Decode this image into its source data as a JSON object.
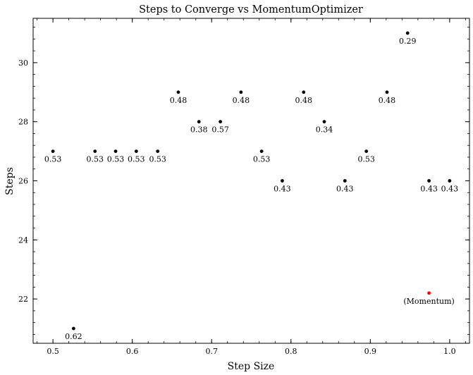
{
  "chart_data": {
    "type": "scatter",
    "title": "Steps to Converge vs MomentumOptimizer",
    "xlabel": "Step Size",
    "ylabel": "Steps",
    "xlim": [
      0.475,
      1.025
    ],
    "ylim": [
      20.5,
      31.5
    ],
    "grid": false,
    "x_ticks": [
      0.5,
      0.6,
      0.7,
      0.8,
      0.9,
      1.0
    ],
    "x_tick_labels": [
      "0.5",
      "0.6",
      "0.7",
      "0.8",
      "0.9",
      "1.0"
    ],
    "y_ticks": [
      22,
      24,
      26,
      28,
      30
    ],
    "y_tick_labels": [
      "22",
      "24",
      "26",
      "28",
      "30"
    ],
    "x_minor_step": 0.02,
    "y_minor_step": 0.4,
    "colors": {
      "points": "#000000",
      "highlight": "#ff0000"
    },
    "series": [
      {
        "points": [
          {
            "x": 0.5,
            "y": 27,
            "label": "0.53"
          },
          {
            "x": 0.526,
            "y": 21,
            "label": "0.62"
          },
          {
            "x": 0.553,
            "y": 27,
            "label": "0.53"
          },
          {
            "x": 0.579,
            "y": 27,
            "label": "0.53"
          },
          {
            "x": 0.605,
            "y": 27,
            "label": "0.53"
          },
          {
            "x": 0.632,
            "y": 27,
            "label": "0.53"
          },
          {
            "x": 0.658,
            "y": 29,
            "label": "0.48"
          },
          {
            "x": 0.684,
            "y": 28,
            "label": "0.38"
          },
          {
            "x": 0.711,
            "y": 28,
            "label": "0.57"
          },
          {
            "x": 0.737,
            "y": 29,
            "label": "0.48"
          },
          {
            "x": 0.763,
            "y": 27,
            "label": "0.53"
          },
          {
            "x": 0.789,
            "y": 26,
            "label": "0.43"
          },
          {
            "x": 0.816,
            "y": 29,
            "label": "0.48"
          },
          {
            "x": 0.842,
            "y": 28,
            "label": "0.34"
          },
          {
            "x": 0.868,
            "y": 26,
            "label": "0.43"
          },
          {
            "x": 0.895,
            "y": 27,
            "label": "0.53"
          },
          {
            "x": 0.921,
            "y": 29,
            "label": "0.48"
          },
          {
            "x": 0.947,
            "y": 31,
            "label": "0.29"
          },
          {
            "x": 0.974,
            "y": 26,
            "label": "0.43"
          },
          {
            "x": 1.0,
            "y": 26,
            "label": "0.43"
          }
        ]
      },
      {
        "highlight": true,
        "points": [
          {
            "x": 0.974,
            "y": 22.2,
            "label": "(Momentum)"
          }
        ]
      }
    ]
  }
}
